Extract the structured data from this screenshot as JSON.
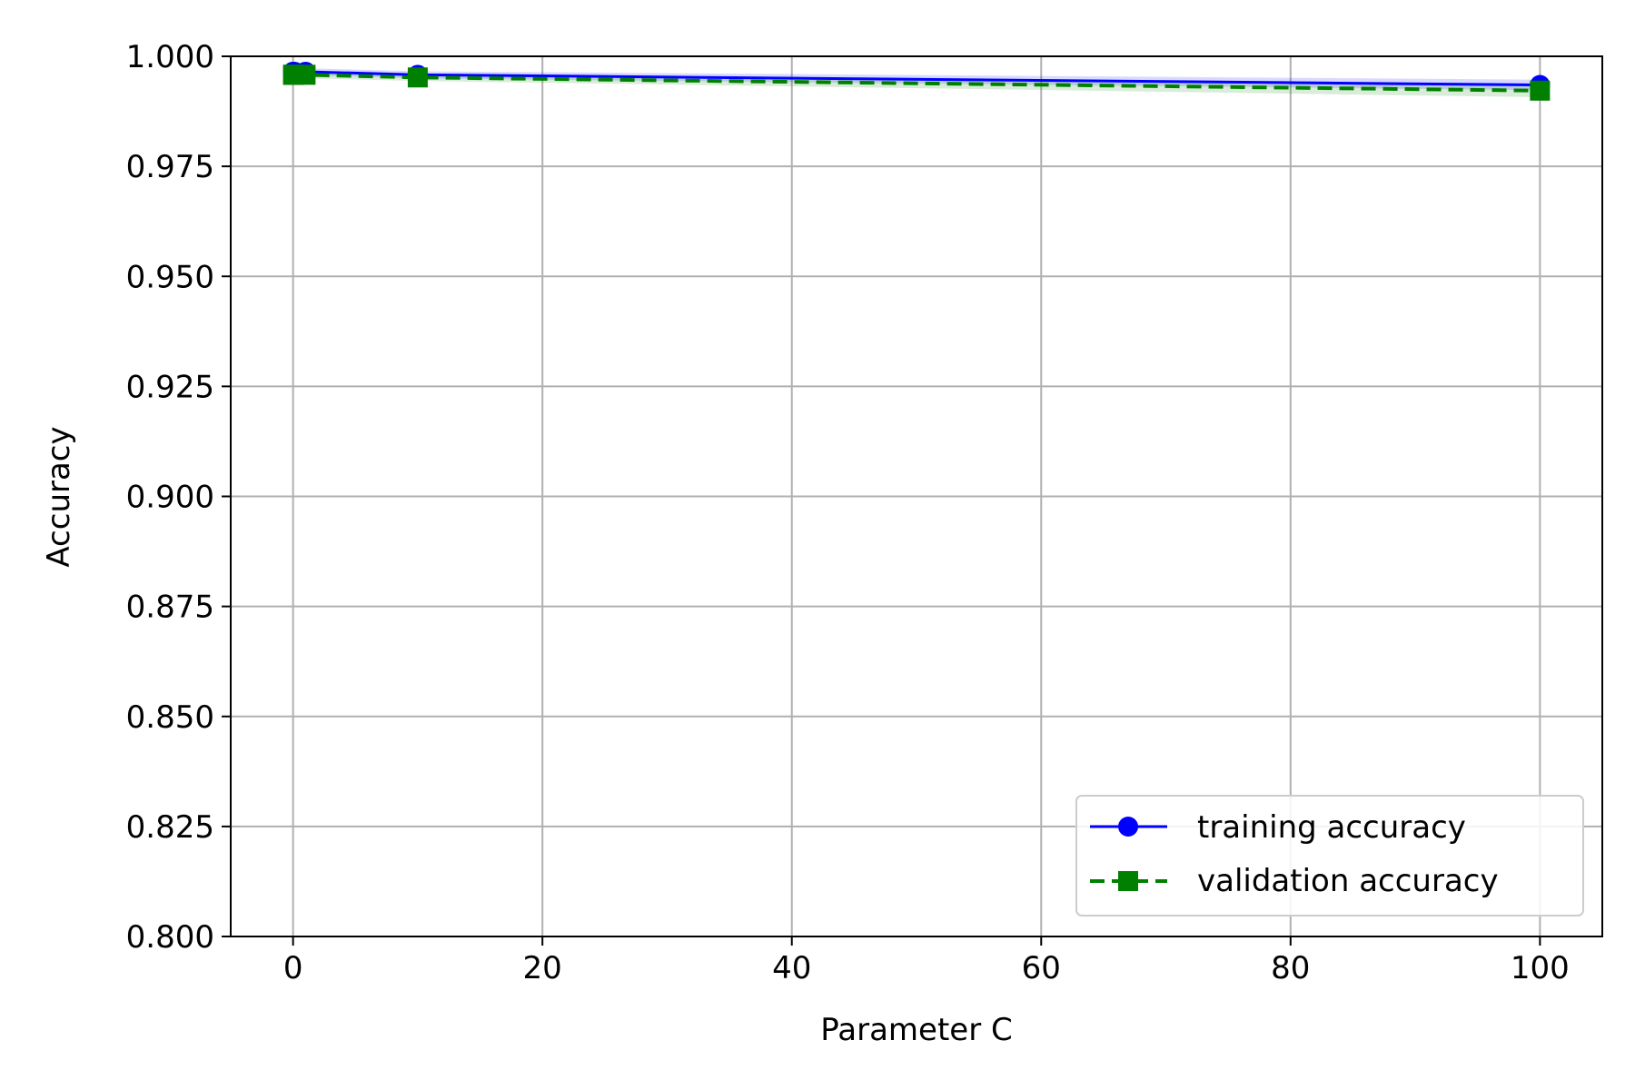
{
  "chart_data": {
    "type": "line",
    "title": "",
    "xlabel": "Parameter C",
    "ylabel": "Accuracy",
    "xlim": [
      -5,
      105
    ],
    "ylim": [
      0.8,
      1.0
    ],
    "xticks": [
      0,
      20,
      40,
      60,
      80,
      100
    ],
    "yticks": [
      0.8,
      0.825,
      0.85,
      0.875,
      0.9,
      0.925,
      0.95,
      0.975,
      1.0
    ],
    "xtick_labels": [
      "0",
      "20",
      "40",
      "60",
      "80",
      "100"
    ],
    "ytick_labels": [
      "0.800",
      "0.825",
      "0.850",
      "0.875",
      "0.900",
      "0.925",
      "0.950",
      "0.975",
      "1.000"
    ],
    "grid": true,
    "legend_position": "lower-right",
    "x": [
      0.001,
      0.01,
      0.1,
      1.0,
      10.0,
      100.0
    ],
    "series": [
      {
        "name": "training accuracy",
        "color": "#0000ff",
        "marker": "circle",
        "linestyle": "solid",
        "values": [
          0.9965,
          0.9965,
          0.9965,
          0.9965,
          0.9958,
          0.9935
        ],
        "band": [
          0.0008,
          0.0008,
          0.0008,
          0.0008,
          0.0008,
          0.0012
        ]
      },
      {
        "name": "validation accuracy",
        "color": "#008000",
        "marker": "square",
        "linestyle": "dashed",
        "values": [
          0.9958,
          0.9958,
          0.9958,
          0.9958,
          0.9952,
          0.9922
        ],
        "band": [
          0.0008,
          0.0008,
          0.0008,
          0.0008,
          0.0008,
          0.0015
        ]
      }
    ]
  }
}
